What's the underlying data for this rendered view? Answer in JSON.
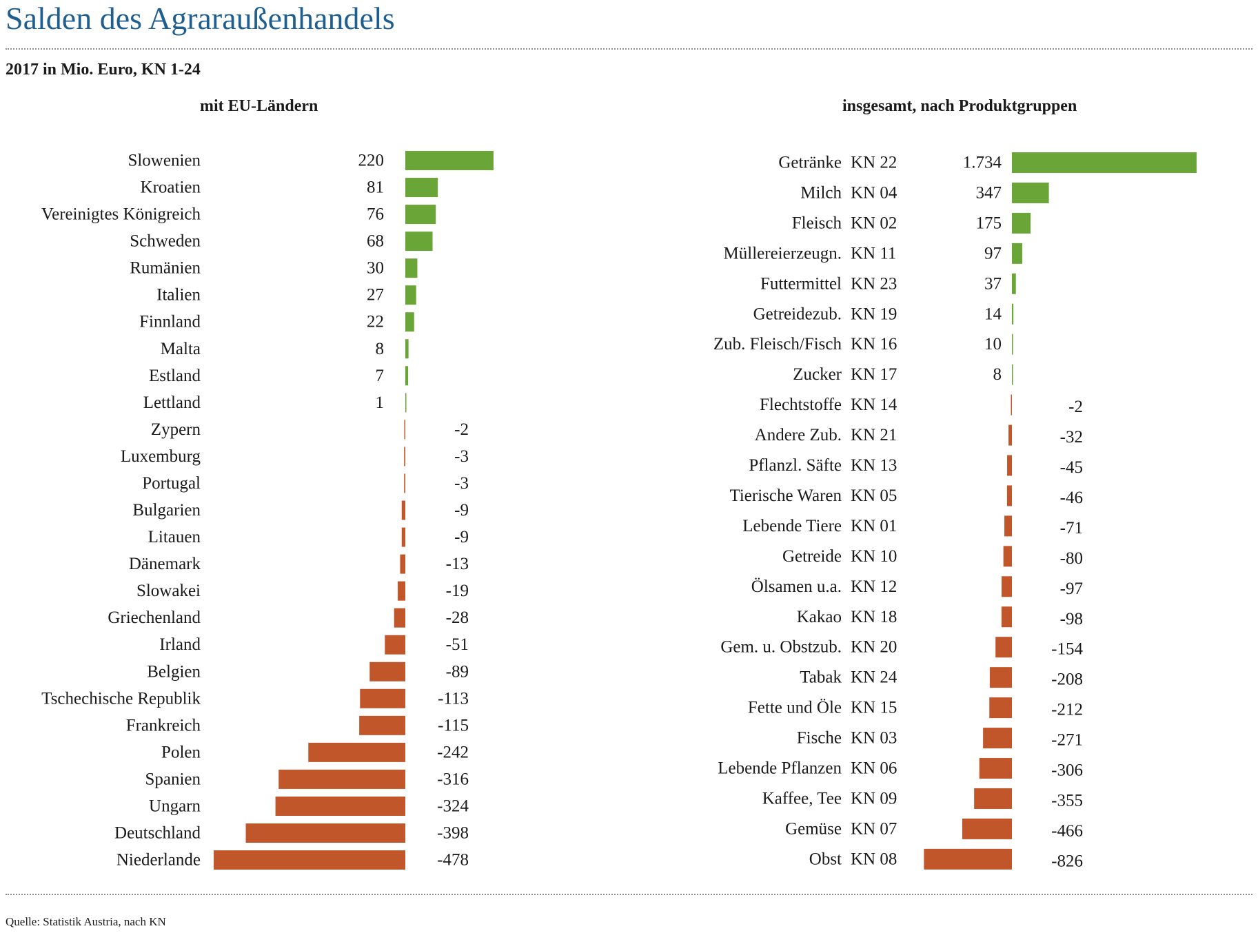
{
  "title": "Salden des Agraraußenhandels",
  "subtitle": "2017 in Mio. Euro, KN 1-24",
  "source": "Quelle: Statistik Austria, nach KN",
  "colors": {
    "positive": "#6aa637",
    "negative": "#c0562a",
    "title": "#1f5f8f"
  },
  "chart_data": [
    {
      "type": "bar",
      "orientation": "horizontal",
      "title": "mit EU-Ländern",
      "categories": [
        "Slowenien",
        "Kroatien",
        "Vereinigtes Königreich",
        "Schweden",
        "Rumänien",
        "Italien",
        "Finnland",
        "Malta",
        "Estland",
        "Lettland",
        "Zypern",
        "Luxemburg",
        "Portugal",
        "Bulgarien",
        "Litauen",
        "Dänemark",
        "Slowakei",
        "Griechenland",
        "Irland",
        "Belgien",
        "Tschechische Republik",
        "Frankreich",
        "Polen",
        "Spanien",
        "Ungarn",
        "Deutschland",
        "Niederlande"
      ],
      "values": [
        220,
        81,
        76,
        68,
        30,
        27,
        22,
        8,
        7,
        1,
        -2,
        -3,
        -3,
        -9,
        -9,
        -13,
        -19,
        -28,
        -51,
        -89,
        -113,
        -115,
        -242,
        -316,
        -324,
        -398,
        -478
      ],
      "value_labels": [
        "220",
        "81",
        "76",
        "68",
        "30",
        "27",
        "22",
        "8",
        "7",
        "1",
        "-2",
        "-3",
        "-3",
        "-9",
        "-9",
        "-13",
        "-19",
        "-28",
        "-51",
        "-89",
        "-113",
        "-115",
        "-242",
        "-316",
        "-324",
        "-398",
        "-478"
      ],
      "xlim": [
        -478,
        220
      ]
    },
    {
      "type": "bar",
      "orientation": "horizontal",
      "title": "insgesamt, nach Produktgruppen",
      "categories": [
        "Getränke",
        "Milch",
        "Fleisch",
        "Müllereierzeugn.",
        "Futtermittel",
        "Getreidezub.",
        "Zub. Fleisch/Fisch",
        "Zucker",
        "Flechtstoffe",
        "Andere Zub.",
        "Pflanzl. Säfte",
        "Tierische Waren",
        "Lebende Tiere",
        "Getreide",
        "Ölsamen u.a.",
        "Kakao",
        "Gem. u. Obstzub.",
        "Tabak",
        "Fette und Öle",
        "Fische",
        "Lebende Pflanzen",
        "Kaffee, Tee",
        "Gemüse",
        "Obst"
      ],
      "codes": [
        "KN 22",
        "KN 04",
        "KN 02",
        "KN 11",
        "KN 23",
        "KN 19",
        "KN 16",
        "KN 17",
        "KN 14",
        "KN 21",
        "KN 13",
        "KN 05",
        "KN 01",
        "KN 10",
        "KN 12",
        "KN 18",
        "KN 20",
        "KN 24",
        "KN 15",
        "KN 03",
        "KN 06",
        "KN 09",
        "KN 07",
        "KN 08"
      ],
      "values": [
        1734,
        347,
        175,
        97,
        37,
        14,
        10,
        8,
        -2,
        -32,
        -45,
        -46,
        -71,
        -80,
        -97,
        -98,
        -154,
        -208,
        -212,
        -271,
        -306,
        -355,
        -466,
        -826
      ],
      "value_labels": [
        "1.734",
        "347",
        "175",
        "97",
        "37",
        "14",
        "10",
        "8",
        "-2",
        "-32",
        "-45",
        "-46",
        "-71",
        "-80",
        "-97",
        "-98",
        "-154",
        "-208",
        "-212",
        "-271",
        "-306",
        "-355",
        "-466",
        "-826"
      ],
      "xlim": [
        -826,
        1734
      ]
    }
  ]
}
